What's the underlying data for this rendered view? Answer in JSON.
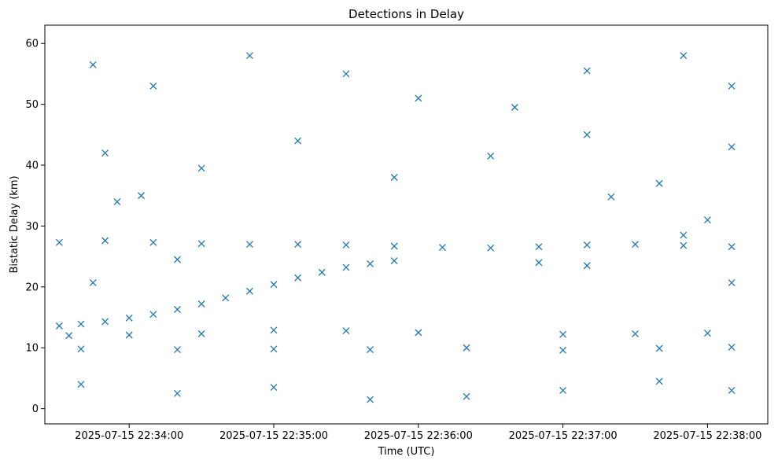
{
  "chart_data": {
    "type": "scatter",
    "title": "Detections in Delay",
    "xlabel": "Time (UTC)",
    "ylabel": "Bistatic Delay (km)",
    "x_unit": "time",
    "x_ticks": [
      "2025-07-15 22:34:00",
      "2025-07-15 22:35:00",
      "2025-07-15 22:36:00",
      "2025-07-15 22:37:00",
      "2025-07-15 22:38:00"
    ],
    "xlim": [
      "2025-07-15 22:33:25",
      "2025-07-15 22:38:25"
    ],
    "y_ticks": [
      0,
      10,
      20,
      30,
      40,
      50,
      60
    ],
    "ylim": [
      -2.5,
      63
    ],
    "marker": "x",
    "grid": false,
    "color": "#1f77b4",
    "series": [
      {
        "points": [
          [
            "2025-07-15 22:33:31",
            13.6
          ],
          [
            "2025-07-15 22:33:40",
            13.9
          ],
          [
            "2025-07-15 22:33:50",
            14.3
          ],
          [
            "2025-07-15 22:34:00",
            14.9
          ],
          [
            "2025-07-15 22:34:10",
            15.5
          ],
          [
            "2025-07-15 22:34:20",
            16.3
          ],
          [
            "2025-07-15 22:34:30",
            17.2
          ],
          [
            "2025-07-15 22:34:40",
            18.2
          ],
          [
            "2025-07-15 22:34:50",
            19.3
          ],
          [
            "2025-07-15 22:35:00",
            20.4
          ],
          [
            "2025-07-15 22:35:10",
            21.5
          ],
          [
            "2025-07-15 22:35:20",
            22.4
          ],
          [
            "2025-07-15 22:35:30",
            23.2
          ],
          [
            "2025-07-15 22:35:40",
            23.8
          ],
          [
            "2025-07-15 22:35:50",
            24.3
          ],
          [
            "2025-07-15 22:33:31",
            27.3
          ],
          [
            "2025-07-15 22:33:50",
            27.6
          ],
          [
            "2025-07-15 22:34:10",
            27.3
          ],
          [
            "2025-07-15 22:34:30",
            27.1
          ],
          [
            "2025-07-15 22:34:50",
            27.0
          ],
          [
            "2025-07-15 22:35:10",
            27.0
          ],
          [
            "2025-07-15 22:35:30",
            26.9
          ],
          [
            "2025-07-15 22:35:50",
            26.7
          ],
          [
            "2025-07-15 22:36:10",
            26.5
          ],
          [
            "2025-07-15 22:36:30",
            26.4
          ],
          [
            "2025-07-15 22:36:50",
            26.6
          ],
          [
            "2025-07-15 22:37:10",
            26.9
          ],
          [
            "2025-07-15 22:37:30",
            27.0
          ],
          [
            "2025-07-15 22:37:50",
            26.8
          ],
          [
            "2025-07-15 22:38:10",
            26.6
          ],
          [
            "2025-07-15 22:33:35",
            12.0
          ],
          [
            "2025-07-15 22:34:00",
            12.1
          ],
          [
            "2025-07-15 22:34:30",
            12.3
          ],
          [
            "2025-07-15 22:35:00",
            12.9
          ],
          [
            "2025-07-15 22:35:30",
            12.8
          ],
          [
            "2025-07-15 22:36:00",
            12.5
          ],
          [
            "2025-07-15 22:37:00",
            12.2
          ],
          [
            "2025-07-15 22:37:30",
            12.3
          ],
          [
            "2025-07-15 22:38:00",
            12.4
          ],
          [
            "2025-07-15 22:33:40",
            9.8
          ],
          [
            "2025-07-15 22:34:20",
            9.7
          ],
          [
            "2025-07-15 22:35:00",
            9.8
          ],
          [
            "2025-07-15 22:35:40",
            9.7
          ],
          [
            "2025-07-15 22:36:20",
            10.0
          ],
          [
            "2025-07-15 22:37:00",
            9.6
          ],
          [
            "2025-07-15 22:37:40",
            9.9
          ],
          [
            "2025-07-15 22:38:10",
            10.1
          ],
          [
            "2025-07-15 22:33:55",
            34.0
          ],
          [
            "2025-07-15 22:34:05",
            35.0
          ],
          [
            "2025-07-15 22:37:20",
            34.8
          ],
          [
            "2025-07-15 22:37:50",
            28.5
          ],
          [
            "2025-07-15 22:38:00",
            31.0
          ],
          [
            "2025-07-15 22:34:20",
            24.5
          ],
          [
            "2025-07-15 22:36:50",
            24.0
          ],
          [
            "2025-07-15 22:37:10",
            23.5
          ],
          [
            "2025-07-15 22:38:10",
            20.7
          ],
          [
            "2025-07-15 22:33:45",
            20.7
          ],
          [
            "2025-07-15 22:33:45",
            56.5
          ],
          [
            "2025-07-15 22:34:10",
            53.0
          ],
          [
            "2025-07-15 22:34:50",
            58.0
          ],
          [
            "2025-07-15 22:35:30",
            55.0
          ],
          [
            "2025-07-15 22:36:00",
            51.0
          ],
          [
            "2025-07-15 22:36:40",
            49.5
          ],
          [
            "2025-07-15 22:37:10",
            55.5
          ],
          [
            "2025-07-15 22:37:50",
            58.0
          ],
          [
            "2025-07-15 22:38:10",
            53.0
          ],
          [
            "2025-07-15 22:33:50",
            42.0
          ],
          [
            "2025-07-15 22:34:30",
            39.5
          ],
          [
            "2025-07-15 22:35:10",
            44.0
          ],
          [
            "2025-07-15 22:35:50",
            38.0
          ],
          [
            "2025-07-15 22:36:30",
            41.5
          ],
          [
            "2025-07-15 22:37:10",
            45.0
          ],
          [
            "2025-07-15 22:37:40",
            37.0
          ],
          [
            "2025-07-15 22:38:10",
            43.0
          ],
          [
            "2025-07-15 22:33:40",
            4.0
          ],
          [
            "2025-07-15 22:34:20",
            2.5
          ],
          [
            "2025-07-15 22:35:00",
            3.5
          ],
          [
            "2025-07-15 22:35:40",
            1.5
          ],
          [
            "2025-07-15 22:36:20",
            2.0
          ],
          [
            "2025-07-15 22:37:00",
            3.0
          ],
          [
            "2025-07-15 22:37:40",
            4.5
          ],
          [
            "2025-07-15 22:38:10",
            3.0
          ]
        ]
      }
    ]
  }
}
